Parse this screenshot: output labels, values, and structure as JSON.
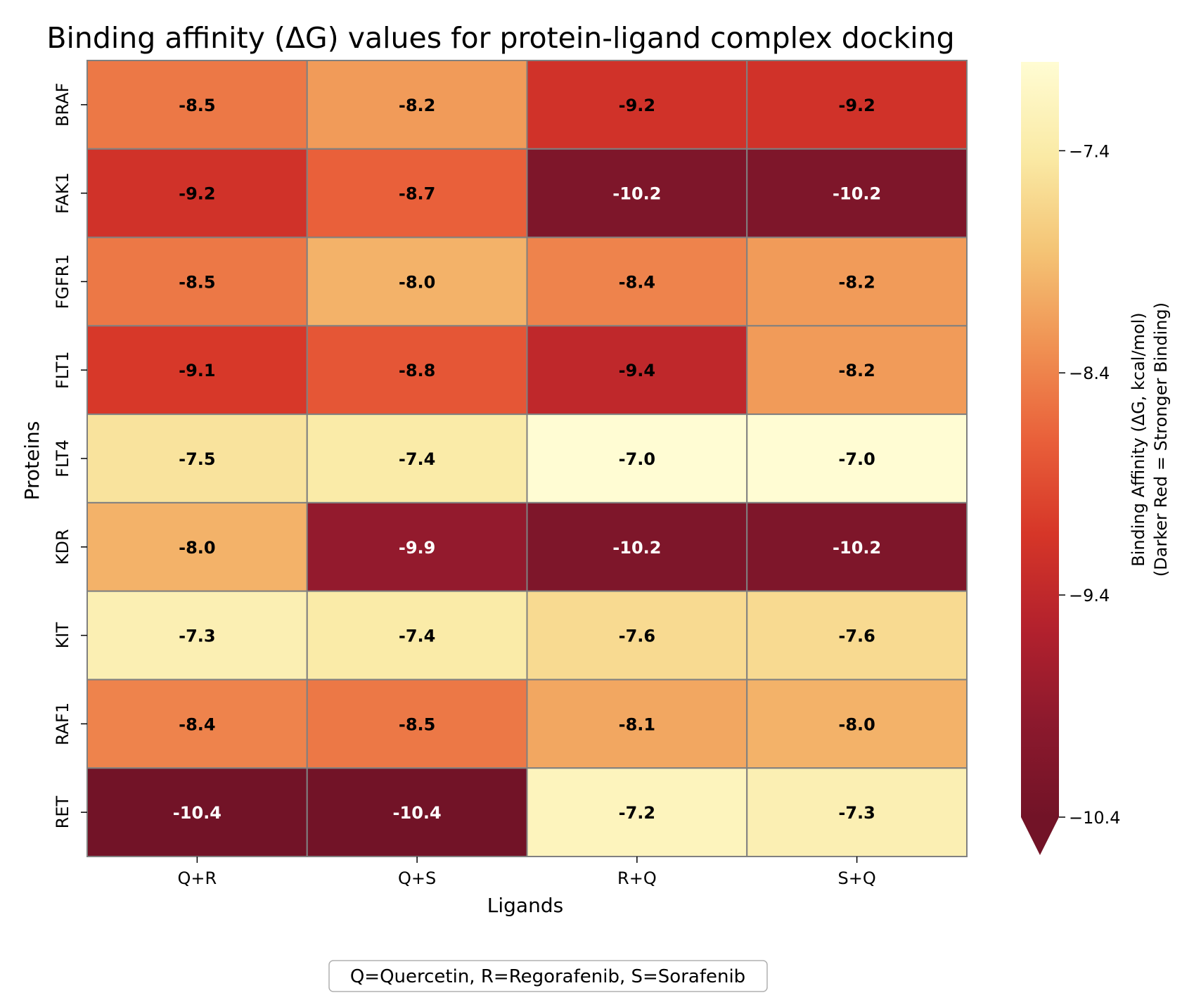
{
  "chart_data": {
    "type": "heatmap",
    "title": "Binding affinity (ΔG) values for protein-ligand complex docking",
    "xlabel": "Ligands",
    "ylabel": "Proteins",
    "x_categories": [
      "Q+R",
      "Q+S",
      "R+Q",
      "S+Q"
    ],
    "y_categories": [
      "BRAF",
      "FAK1",
      "FGFR1",
      "FLT1",
      "FLT4",
      "KDR",
      "KIT",
      "RAF1",
      "RET"
    ],
    "values": [
      [
        -8.5,
        -8.2,
        -9.2,
        -9.2
      ],
      [
        -9.2,
        -8.7,
        -10.2,
        -10.2
      ],
      [
        -8.5,
        -8.0,
        -8.4,
        -8.2
      ],
      [
        -9.1,
        -8.8,
        -9.4,
        -8.2
      ],
      [
        -7.5,
        -7.4,
        -7.0,
        -7.0
      ],
      [
        -8.0,
        -9.9,
        -10.2,
        -10.2
      ],
      [
        -7.3,
        -7.4,
        -7.6,
        -7.6
      ],
      [
        -8.4,
        -8.5,
        -8.1,
        -8.0
      ],
      [
        -10.4,
        -10.4,
        -7.2,
        -7.3
      ]
    ],
    "colorbar": {
      "label_line1": "Binding Affinity (ΔG, kcal/mol)",
      "label_line2": "(Darker Red = Stronger Binding)",
      "vmin": -10.4,
      "vmax": -7.0,
      "ticks": [
        -7.4,
        -8.4,
        -9.4,
        -10.4
      ],
      "tick_labels": [
        "−7.4",
        "−8.4",
        "−9.4",
        "−10.4"
      ],
      "extend": "min",
      "colormap": "YlOrRd (reversed)"
    },
    "legend_text": "Q=Quercetin, R=Regorafenib, S=Sorafenib",
    "grid_line_color": "#808080"
  }
}
